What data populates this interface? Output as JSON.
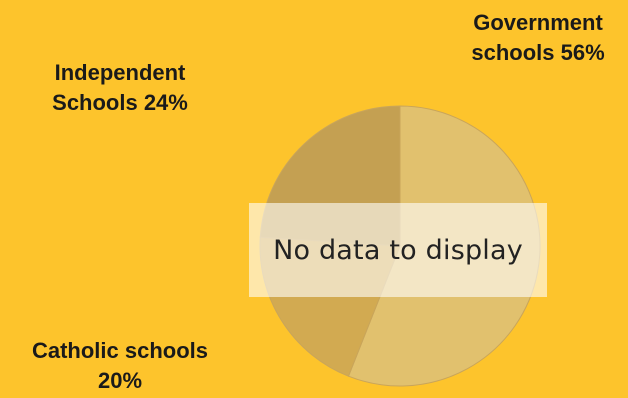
{
  "chart_data": {
    "type": "pie",
    "categories": [
      "Government schools",
      "Catholic schools",
      "Independent Schools"
    ],
    "values": [
      56,
      20,
      24
    ],
    "labels": [
      {
        "lines": [
          "Government",
          "schools 56%"
        ]
      },
      {
        "lines": [
          "Catholic schools",
          "20%"
        ]
      },
      {
        "lines": [
          "Independent",
          "Schools 24%"
        ]
      }
    ],
    "colors": [
      "#E1C16E",
      "#D2AA51",
      "#C4A052"
    ],
    "divider_color": "#C9A55A",
    "legend": "none",
    "message": "No data to display"
  }
}
